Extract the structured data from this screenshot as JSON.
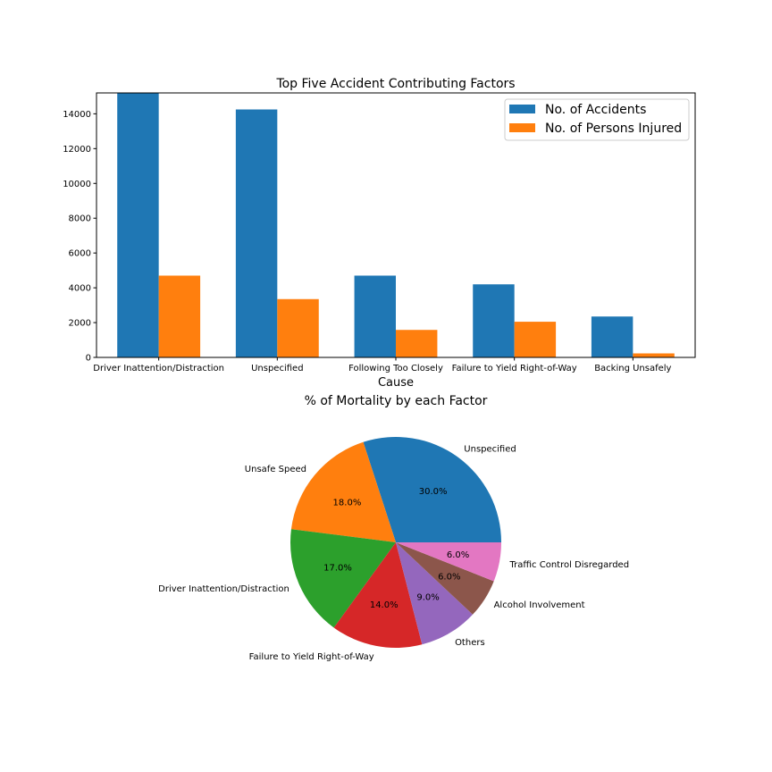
{
  "chart_data": [
    {
      "type": "bar",
      "title": "Top Five Accident Contributing Factors",
      "xlabel": "Cause",
      "ylabel": "",
      "categories": [
        "Driver Inattention/Distraction",
        "Unspecified",
        "Following Too Closely",
        "Failure to Yield Right-of-Way",
        "Backing Unsafely"
      ],
      "series": [
        {
          "name": "No. of Accidents",
          "color": "#1f77b4",
          "values": [
            15200,
            14250,
            4700,
            4200,
            2350
          ]
        },
        {
          "name": "No. of Persons Injured",
          "color": "#ff7f0e",
          "values": [
            4700,
            3350,
            1580,
            2050,
            230
          ]
        }
      ],
      "ylim": [
        0,
        15200
      ],
      "yticks": [
        0,
        2000,
        4000,
        6000,
        8000,
        10000,
        12000,
        14000
      ],
      "legend": "top-right",
      "grid": false
    },
    {
      "type": "pie",
      "title": "% of Mortality by each Factor",
      "slices": [
        {
          "label": "Unspecified",
          "value": 30.0,
          "pct_label": "30.0%",
          "color": "#1f77b4"
        },
        {
          "label": "Unsafe Speed",
          "value": 18.0,
          "pct_label": "18.0%",
          "color": "#ff7f0e"
        },
        {
          "label": "Driver Inattention/Distraction",
          "value": 17.0,
          "pct_label": "17.0%",
          "color": "#2ca02c"
        },
        {
          "label": "Failure to Yield Right-of-Way",
          "value": 14.0,
          "pct_label": "14.0%",
          "color": "#d62728"
        },
        {
          "label": "Others",
          "value": 9.0,
          "pct_label": "9.0%",
          "color": "#9467bd"
        },
        {
          "label": "Alcohol Involvement",
          "value": 6.0,
          "pct_label": "6.0%",
          "color": "#8c564b"
        },
        {
          "label": "Traffic Control Disregarded",
          "value": 6.0,
          "pct_label": "6.0%",
          "color": "#e377c2"
        }
      ],
      "start_angle_deg": 0,
      "direction": "counterclockwise"
    }
  ]
}
